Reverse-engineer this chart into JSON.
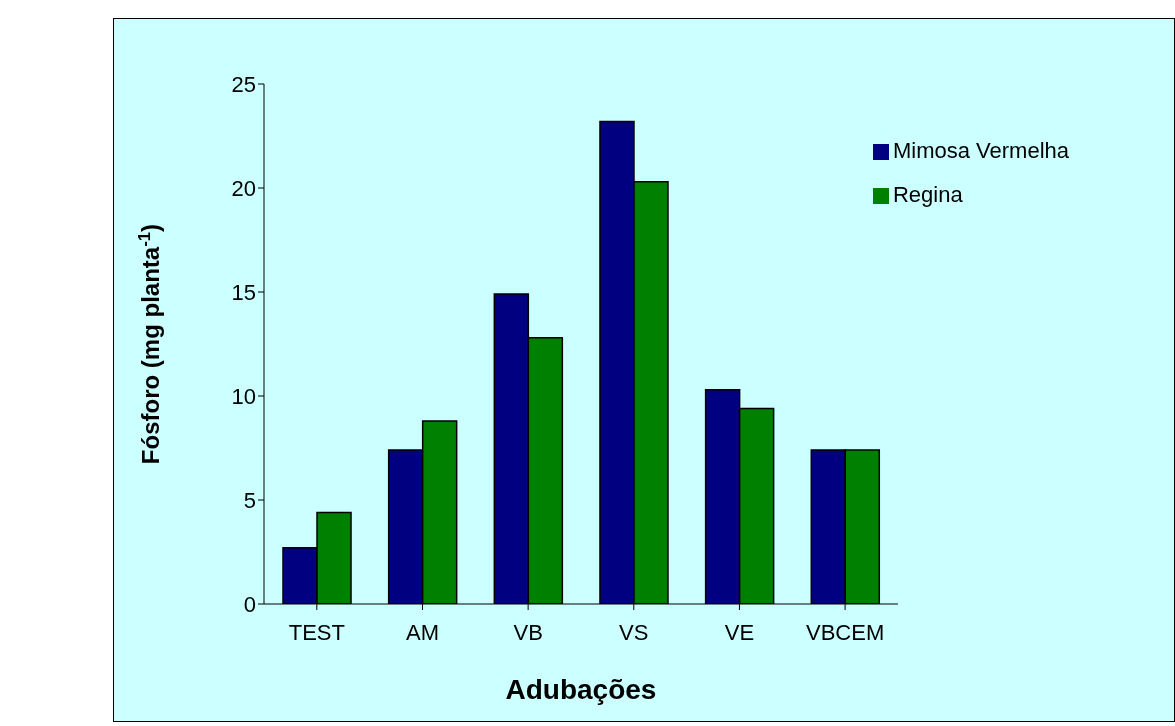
{
  "chart_data": {
    "type": "bar",
    "xlabel": "Adubações",
    "ylabel": "Fósforo (mg planta$^{-1}$)",
    "categories": [
      "TEST",
      "AM",
      "VB",
      "VS",
      "VE",
      "VBCEM"
    ],
    "series": [
      {
        "name": "Mimosa Vermelha",
        "color": "#000080",
        "values": [
          2.7,
          7.4,
          14.9,
          23.2,
          10.3,
          7.4
        ]
      },
      {
        "name": "Regina",
        "color": "#008000",
        "values": [
          4.4,
          8.8,
          12.8,
          20.3,
          9.4,
          7.4
        ]
      }
    ],
    "ylim": [
      0,
      25
    ],
    "yticks": [
      0,
      5,
      10,
      15,
      20,
      25
    ],
    "grid": false,
    "legend": "top right"
  }
}
